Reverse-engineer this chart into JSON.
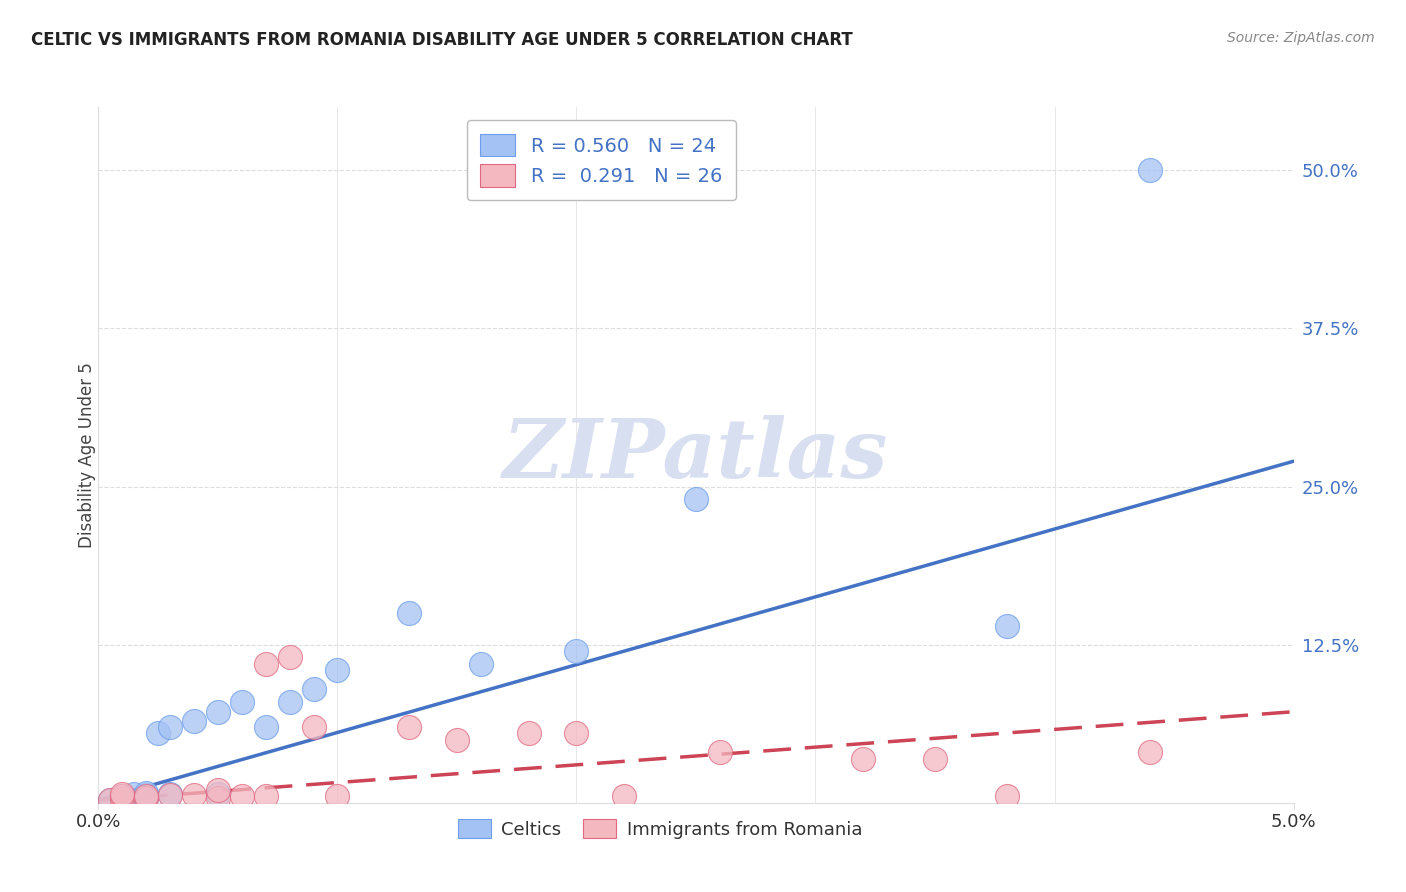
{
  "title": "CELTIC VS IMMIGRANTS FROM ROMANIA DISABILITY AGE UNDER 5 CORRELATION CHART",
  "source": "Source: ZipAtlas.com",
  "ylabel": "Disability Age Under 5",
  "xlim": [
    0.0,
    0.05
  ],
  "ylim": [
    0.0,
    0.55
  ],
  "ytick_labels": [
    "12.5%",
    "25.0%",
    "37.5%",
    "50.0%"
  ],
  "ytick_positions": [
    0.125,
    0.25,
    0.375,
    0.5
  ],
  "celtics_color": "#a4c2f4",
  "romania_color": "#f4b8c1",
  "celtics_edge_color": "#6d9eeb",
  "romania_edge_color": "#e06981",
  "celtics_line_color": "#4472c4",
  "romania_line_color": "#cc4455",
  "celtics_R": 0.56,
  "celtics_N": 24,
  "romania_R": 0.291,
  "romania_N": 26,
  "celtics_x": [
    0.0005,
    0.001,
    0.001,
    0.0015,
    0.002,
    0.002,
    0.002,
    0.0025,
    0.003,
    0.003,
    0.004,
    0.005,
    0.005,
    0.006,
    0.007,
    0.008,
    0.009,
    0.01,
    0.013,
    0.016,
    0.02,
    0.025,
    0.038,
    0.044
  ],
  "celtics_y": [
    0.002,
    0.003,
    0.005,
    0.007,
    0.004,
    0.006,
    0.008,
    0.055,
    0.007,
    0.06,
    0.065,
    0.007,
    0.072,
    0.08,
    0.06,
    0.08,
    0.09,
    0.105,
    0.15,
    0.11,
    0.12,
    0.24,
    0.14,
    0.5
  ],
  "romania_x": [
    0.0005,
    0.001,
    0.001,
    0.001,
    0.002,
    0.002,
    0.003,
    0.004,
    0.005,
    0.005,
    0.006,
    0.007,
    0.007,
    0.008,
    0.009,
    0.01,
    0.013,
    0.015,
    0.018,
    0.02,
    0.022,
    0.026,
    0.032,
    0.035,
    0.038,
    0.044
  ],
  "romania_y": [
    0.002,
    0.003,
    0.005,
    0.007,
    0.004,
    0.005,
    0.006,
    0.006,
    0.004,
    0.01,
    0.005,
    0.005,
    0.11,
    0.115,
    0.06,
    0.005,
    0.06,
    0.05,
    0.055,
    0.055,
    0.005,
    0.04,
    0.035,
    0.035,
    0.005,
    0.04
  ],
  "celtics_line_x": [
    0.0,
    0.05
  ],
  "celtics_line_y": [
    0.002,
    0.27
  ],
  "romania_line_x": [
    0.0,
    0.05
  ],
  "romania_line_y": [
    0.002,
    0.072
  ],
  "background_color": "#ffffff",
  "watermark_text": "ZIPatlas",
  "watermark_color": "#d8dff0",
  "grid_color": "#dddddd",
  "label_color": "#4472c4",
  "title_color": "#222222"
}
